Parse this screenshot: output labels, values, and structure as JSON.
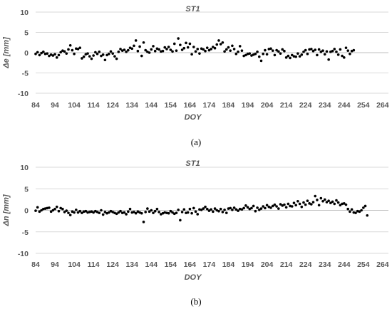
{
  "chart_data": [
    {
      "type": "scatter",
      "title": "ST1",
      "xlabel": "DOY",
      "ylabel": "Δe [mm]",
      "caption": "(a)",
      "xlim": [
        84,
        267
      ],
      "ylim": [
        -10,
        10
      ],
      "xticks": [
        84,
        94,
        104,
        114,
        124,
        134,
        144,
        154,
        164,
        174,
        184,
        194,
        204,
        214,
        224,
        234,
        244,
        254,
        264
      ],
      "yticks": [
        10,
        5,
        0,
        -5,
        -10
      ],
      "grid": true,
      "marker_color": "#000000",
      "x_start": 84,
      "x_step": 1,
      "y": [
        -0.3,
        0.1,
        -0.6,
        -0.1,
        0.2,
        -0.3,
        -0.2,
        -0.8,
        -0.5,
        -0.7,
        -0.4,
        -1.2,
        -0.6,
        0.1,
        0.5,
        0.3,
        -0.2,
        0.8,
        1.8,
        0.6,
        -0.3,
        1.0,
        0.9,
        1.2,
        -1.4,
        -1.0,
        -0.4,
        -0.2,
        -0.9,
        -1.5,
        -0.7,
        0.1,
        -0.3,
        0.2,
        -0.8,
        -0.5,
        -1.8,
        -0.6,
        -0.3,
        0.3,
        -0.2,
        -0.9,
        -1.5,
        0.2,
        0.9,
        0.5,
        0.7,
        0.2,
        0.6,
        1.2,
        1.0,
        1.7,
        3.0,
        0.4,
        1.5,
        -0.8,
        2.5,
        0.6,
        0.2,
        0.0,
        0.8,
        1.6,
        0.4,
        1.0,
        0.8,
        0.3,
        0.4,
        1.3,
        0.9,
        1.4,
        0.7,
        0.3,
        2.2,
        0.5,
        3.5,
        1.9,
        0.7,
        1.1,
        2.4,
        1.3,
        2.2,
        -0.4,
        1.4,
        0.3,
        0.9,
        -0.2,
        1.0,
        0.8,
        0.4,
        1.2,
        0.6,
        0.9,
        1.4,
        1.1,
        2.0,
        3.0,
        2.1,
        2.5,
        0.3,
        0.8,
        1.3,
        0.5,
        1.7,
        0.9,
        -0.3,
        0.2,
        1.6,
        0.5,
        -0.8,
        -0.6,
        -0.3,
        -0.2,
        -0.7,
        -0.5,
        -0.3,
        0.2,
        -1.0,
        -2.0,
        -0.3,
        0.6,
        -0.4,
        0.9,
        1.0,
        0.5,
        -0.6,
        0.6,
        0.3,
        -0.2,
        0.8,
        0.4,
        -1.2,
        -0.8,
        -1.3,
        -0.6,
        -0.9,
        -1.0,
        -0.2,
        -0.9,
        -0.5,
        0.2,
        0.6,
        -0.3,
        0.8,
        0.9,
        0.4,
        0.7,
        -0.6,
        0.8,
        0.2,
        0.5,
        -0.4,
        0.3,
        -1.7,
        0.2,
        0.4,
        0.9,
        0.2,
        -0.5,
        0.8,
        -0.8,
        -1.2,
        1.2,
        0.5,
        -0.3,
        0.4,
        0.6
      ]
    },
    {
      "type": "scatter",
      "title": "ST1",
      "xlabel": "DOY",
      "ylabel": "Δn [mm]",
      "caption": "(b)",
      "xlim": [
        84,
        267
      ],
      "ylim": [
        -10,
        10
      ],
      "xticks": [
        84,
        94,
        104,
        114,
        124,
        134,
        144,
        154,
        164,
        174,
        184,
        194,
        204,
        214,
        224,
        234,
        244,
        254,
        264
      ],
      "yticks": [
        10,
        5,
        0,
        -5,
        -10
      ],
      "grid": true,
      "marker_color": "#000000",
      "x_start": 84,
      "x_step": 1,
      "y": [
        -0.1,
        0.7,
        -0.3,
        0.0,
        0.3,
        0.4,
        0.5,
        0.6,
        -0.3,
        0.0,
        0.3,
        0.8,
        -0.2,
        0.5,
        0.3,
        -0.4,
        -0.1,
        -0.6,
        -1.1,
        -0.3,
        -0.5,
        0.1,
        -0.5,
        -0.2,
        -0.6,
        -0.3,
        -0.2,
        -0.5,
        -0.4,
        -0.3,
        -0.5,
        -0.2,
        -0.4,
        -0.6,
        0.0,
        -1.0,
        -0.4,
        -0.7,
        -0.5,
        -0.2,
        -0.4,
        -0.6,
        -0.8,
        -0.5,
        -0.2,
        -0.6,
        -0.5,
        -0.9,
        -0.3,
        0.3,
        -0.5,
        -0.4,
        -0.7,
        -0.3,
        -0.5,
        -0.7,
        -2.7,
        -0.4,
        0.4,
        -0.3,
        0.0,
        -0.6,
        -0.2,
        0.3,
        -0.4,
        -0.9,
        -0.7,
        -0.5,
        -0.6,
        -0.7,
        -0.2,
        -0.5,
        -0.8,
        -0.6,
        0.1,
        -2.3,
        -0.4,
        0.2,
        -0.6,
        -0.5,
        0.3,
        -0.7,
        0.5,
        -0.3,
        -0.9,
        0.2,
        0.1,
        0.4,
        0.8,
        0.3,
        -0.1,
        0.2,
        -0.3,
        0.4,
        0.0,
        -0.2,
        0.3,
        -0.4,
        0.1,
        -0.6,
        0.4,
        0.5,
        0.1,
        0.6,
        0.2,
        -0.1,
        0.3,
        0.2,
        0.5,
        1.1,
        0.7,
        0.3,
        0.5,
        1.0,
        -0.2,
        0.6,
        0.1,
        0.4,
        0.9,
        0.5,
        1.2,
        0.8,
        0.6,
        1.0,
        1.3,
        0.9,
        0.4,
        1.4,
        1.1,
        1.3,
        0.7,
        1.5,
        1.0,
        0.9,
        1.7,
        1.2,
        2.1,
        1.5,
        0.8,
        1.8,
        1.3,
        2.2,
        1.6,
        1.4,
        1.9,
        3.3,
        2.4,
        1.2,
        2.8,
        2.1,
        2.5,
        1.9,
        2.2,
        1.7,
        2.0,
        1.5,
        2.3,
        1.8,
        1.2,
        1.5,
        1.6,
        1.3,
        0.3,
        -0.3,
        0.2,
        -0.5,
        -0.6,
        -0.2,
        -0.3,
        0.0,
        0.6,
        1.0,
        -1.2
      ]
    }
  ]
}
